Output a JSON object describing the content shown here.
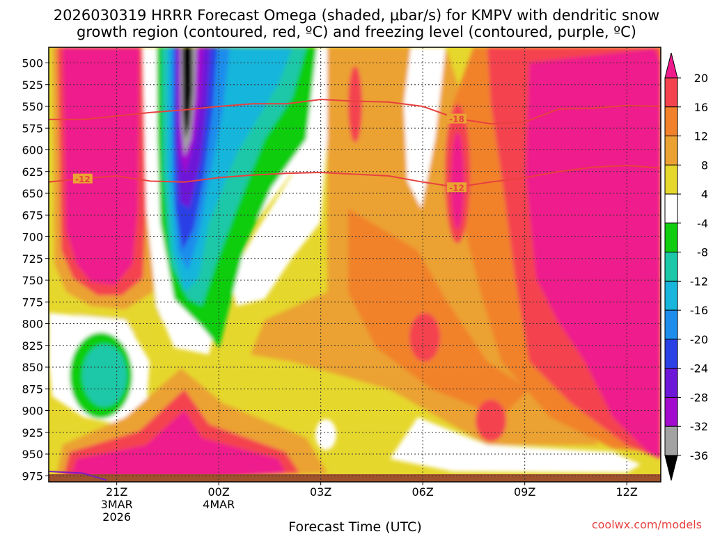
{
  "title_line1": "2026030319 HRRR Forecast Omega (shaded, μbar/s) for KMPV with dendritic snow",
  "title_line2": "growth region (contoured, red, ºC) and freezing level (contoured, purple, ºC)",
  "credit": "coolwx.com/models",
  "credit_color": "#e8413f",
  "chart_data": {
    "type": "heatmap",
    "xlabel": "Forecast Time (UTC)",
    "ylabel": "",
    "x_ticks": [
      {
        "hour": 2,
        "lines": [
          "21Z",
          "3MAR",
          "2026"
        ]
      },
      {
        "hour": 5,
        "lines": [
          "00Z",
          "4MAR"
        ]
      },
      {
        "hour": 8,
        "lines": [
          "03Z"
        ]
      },
      {
        "hour": 11,
        "lines": [
          "06Z"
        ]
      },
      {
        "hour": 14,
        "lines": [
          "09Z"
        ]
      },
      {
        "hour": 17,
        "lines": [
          "12Z"
        ]
      }
    ],
    "x_range_hours": [
      0,
      18
    ],
    "y_ticks_mb": [
      500,
      525,
      550,
      575,
      600,
      625,
      650,
      675,
      700,
      725,
      750,
      775,
      800,
      825,
      850,
      875,
      900,
      925,
      950,
      975
    ],
    "y_range_mb": [
      482,
      982
    ],
    "grid": true,
    "colorbar": {
      "labels": [
        20,
        16,
        12,
        8,
        4,
        -4,
        -8,
        -12,
        -16,
        -20,
        -24,
        -28,
        -32,
        -36
      ],
      "levels": [
        {
          "range": "> 20",
          "color": "#ee1a8c"
        },
        {
          "range": "16 to 20",
          "color": "#f4434f"
        },
        {
          "range": "12 to 16",
          "color": "#f1822b"
        },
        {
          "range": "8 to 12",
          "color": "#eba232"
        },
        {
          "range": "4 to 8",
          "color": "#e6d72d"
        },
        {
          "range": "-4 to 4",
          "color": "#ffffff"
        },
        {
          "range": "-8 to -4",
          "color": "#10cd10"
        },
        {
          "range": "-12 to -8",
          "color": "#1dc8a8"
        },
        {
          "range": "-16 to -12",
          "color": "#18b5dc"
        },
        {
          "range": "-20 to -16",
          "color": "#1f8dec"
        },
        {
          "range": "-24 to -20",
          "color": "#2a41e6"
        },
        {
          "range": "-28 to -24",
          "color": "#6d17d8"
        },
        {
          "range": "-32 to -28",
          "color": "#a30ccf"
        },
        {
          "range": "-36 to -32",
          "color": "#a2a2a2"
        },
        {
          "range": "< -36",
          "color": "#000000"
        }
      ]
    },
    "series": [
      {
        "label": "-12",
        "color": "#e8413f",
        "points": [
          [
            0,
            637
          ],
          [
            1,
            633
          ],
          [
            2,
            630
          ],
          [
            3,
            636
          ],
          [
            4,
            637
          ],
          [
            5,
            632
          ],
          [
            6,
            629
          ],
          [
            7,
            627
          ],
          [
            8,
            626
          ],
          [
            9,
            628
          ],
          [
            10,
            630
          ],
          [
            11,
            637
          ],
          [
            12,
            643
          ],
          [
            13,
            637
          ],
          [
            14,
            632
          ],
          [
            15,
            625
          ],
          [
            16,
            620
          ],
          [
            17,
            618
          ],
          [
            18,
            621
          ]
        ]
      },
      {
        "label": "-18",
        "color": "#e8413f",
        "points": [
          [
            0,
            565
          ],
          [
            1,
            565
          ],
          [
            2,
            561
          ],
          [
            3,
            557
          ],
          [
            4,
            554
          ],
          [
            5,
            550
          ],
          [
            6,
            547
          ],
          [
            7,
            547
          ],
          [
            8,
            542
          ],
          [
            9,
            544
          ],
          [
            10,
            545
          ],
          [
            11,
            550
          ],
          [
            12,
            564
          ],
          [
            13,
            570
          ],
          [
            14,
            568
          ],
          [
            15,
            553
          ],
          [
            16,
            552
          ],
          [
            17,
            549
          ],
          [
            18,
            550
          ]
        ]
      },
      {
        "label": "",
        "color": "#7a1fc0",
        "points": [
          [
            0,
            970
          ],
          [
            1,
            972
          ],
          [
            1.7,
            980
          ]
        ]
      }
    ],
    "terrain_color": "#a0522d"
  }
}
